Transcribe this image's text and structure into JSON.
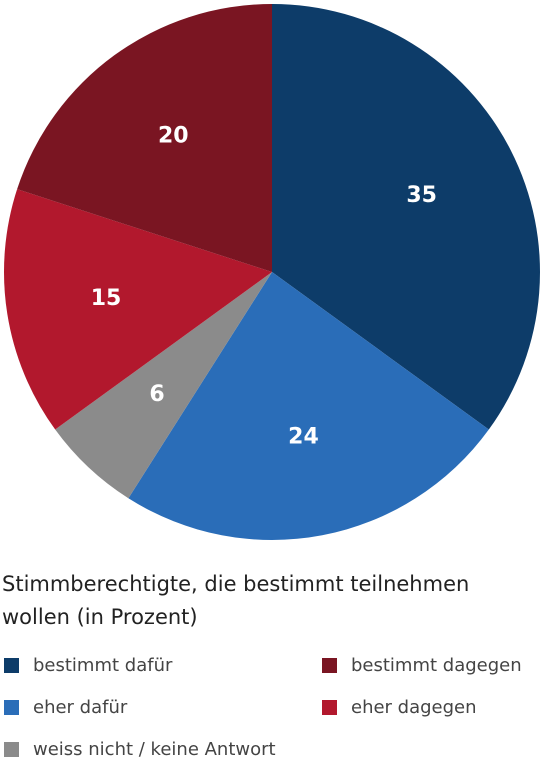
{
  "chart_data": {
    "type": "pie",
    "title": "Stimmberechtigte, die bestimmt teilnehmen wollen (in Prozent)",
    "slices": [
      {
        "label": "bestimmt dafür",
        "value": 35,
        "color": "#0d3c69"
      },
      {
        "label": "eher dafür",
        "value": 24,
        "color": "#2a6db8"
      },
      {
        "label": "weiss nicht / keine Antwort",
        "value": 6,
        "color": "#8b8b8b"
      },
      {
        "label": "eher dagegen",
        "value": 15,
        "color": "#b2182d"
      },
      {
        "label": "bestimmt dagegen",
        "value": 20,
        "color": "#7a1522"
      }
    ],
    "start_angle_deg": 0,
    "direction": "clockwise",
    "legend_position": "bottom"
  },
  "legend": [
    {
      "label": "bestimmt dafür",
      "color": "#0d3c69"
    },
    {
      "label": "eher dafür",
      "color": "#2a6db8"
    },
    {
      "label": "weiss nicht / keine Antwort",
      "color": "#8b8b8b"
    },
    {
      "label": "bestimmt dagegen",
      "color": "#7a1522"
    },
    {
      "label": "eher dagegen",
      "color": "#b2182d"
    }
  ]
}
